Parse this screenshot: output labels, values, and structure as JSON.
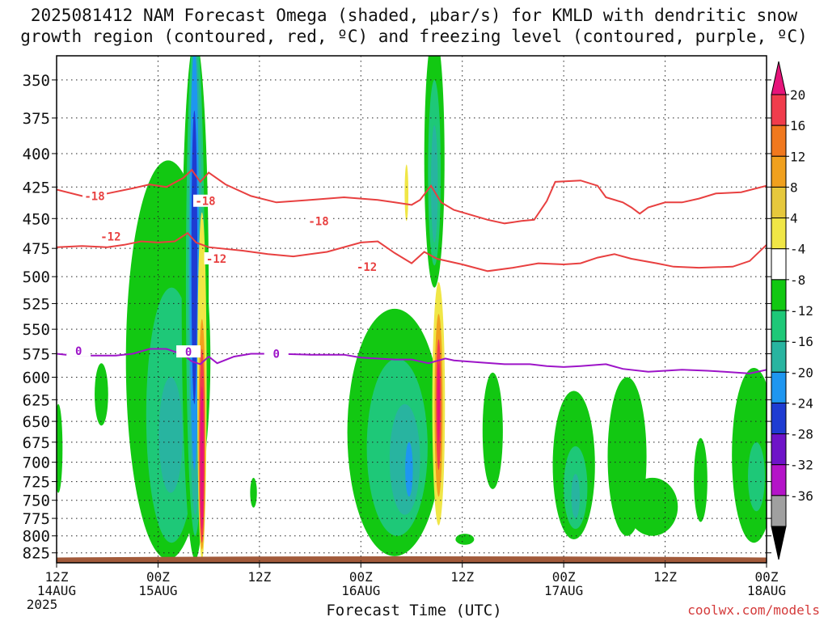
{
  "title_line1": "2025081412 NAM Forecast Omega (shaded, μbar/s) for KMLD with dendritic snow",
  "title_line2": "growth region (contoured, red, ºC) and freezing level (contoured, purple, ºC)",
  "credit": "coolwx.com/models",
  "chart_data": {
    "type": "heatmap",
    "xlabel": "Forecast Time (UTC)",
    "ylabel": "",
    "x_hours_range": [
      0,
      84
    ],
    "x_ticks": [
      {
        "hour": 0,
        "line1": "12Z",
        "line2": "14AUG",
        "line3": "2025"
      },
      {
        "hour": 12,
        "line1": "00Z",
        "line2": "15AUG",
        "line3": ""
      },
      {
        "hour": 24,
        "line1": "12Z",
        "line2": "",
        "line3": ""
      },
      {
        "hour": 36,
        "line1": "00Z",
        "line2": "16AUG",
        "line3": ""
      },
      {
        "hour": 48,
        "line1": "12Z",
        "line2": "",
        "line3": ""
      },
      {
        "hour": 60,
        "line1": "00Z",
        "line2": "17AUG",
        "line3": ""
      },
      {
        "hour": 72,
        "line1": "12Z",
        "line2": "",
        "line3": ""
      },
      {
        "hour": 84,
        "line1": "00Z",
        "line2": "18AUG",
        "line3": ""
      }
    ],
    "y_pressure_range_hpa": [
      335,
      840
    ],
    "y_scale": "log",
    "y_ticks": [
      350,
      375,
      400,
      425,
      450,
      475,
      500,
      525,
      550,
      575,
      600,
      625,
      650,
      675,
      700,
      725,
      750,
      775,
      800,
      825
    ],
    "grid": true,
    "colorbar": {
      "labels": [
        "20",
        "16",
        "12",
        "8",
        "4",
        "-4",
        "-8",
        "-12",
        "-16",
        "-20",
        "-24",
        "-28",
        "-32",
        "-36"
      ],
      "bands": [
        {
          "color": "#f03c4c"
        },
        {
          "color": "#f0781e"
        },
        {
          "color": "#f0a01e"
        },
        {
          "color": "#e6c83c"
        },
        {
          "color": "#f0e646"
        },
        {
          "color": "#ffffff"
        },
        {
          "color": "#12c812"
        },
        {
          "color": "#1ec878"
        },
        {
          "color": "#28b4a0"
        },
        {
          "color": "#1e96f0"
        },
        {
          "color": "#1e3cd2"
        },
        {
          "color": "#6e14c8"
        },
        {
          "color": "#b414c8"
        },
        {
          "color": "#a0a0a0"
        }
      ],
      "top_triangle_color": "#e6147a",
      "bottom_triangle_color": "#000000"
    },
    "omega_regions": [
      {
        "color": "#12c812",
        "cx": 13.2,
        "p": 620,
        "rx": 5.0,
        "rp": 215
      },
      {
        "color": "#1ec878",
        "cx": 13.6,
        "p": 660,
        "rx": 3.0,
        "rp": 150
      },
      {
        "color": "#28b4a0",
        "cx": 13.5,
        "p": 670,
        "rx": 1.4,
        "rp": 70
      },
      {
        "color": "#12c812",
        "cx": 16.4,
        "p": 580,
        "rx": 1.6,
        "rp": 255
      },
      {
        "color": "#1ec878",
        "cx": 16.4,
        "p": 560,
        "rx": 1.1,
        "rp": 240
      },
      {
        "color": "#28b4a0",
        "cx": 16.4,
        "p": 550,
        "rx": 0.8,
        "rp": 220
      },
      {
        "color": "#1e96f0",
        "cx": 16.3,
        "p": 520,
        "rx": 0.55,
        "rp": 190
      },
      {
        "color": "#1e3cd2",
        "cx": 16.3,
        "p": 500,
        "rx": 0.35,
        "rp": 130
      },
      {
        "color": "#f0e646",
        "cx": 17.2,
        "p": 640,
        "rx": 0.55,
        "rp": 195
      },
      {
        "color": "#f0a01e",
        "cx": 17.2,
        "p": 680,
        "rx": 0.42,
        "rp": 140
      },
      {
        "color": "#f03c4c",
        "cx": 17.2,
        "p": 690,
        "rx": 0.32,
        "rp": 120
      },
      {
        "color": "#e6147a",
        "cx": 17.2,
        "p": 700,
        "rx": 0.2,
        "rp": 90
      },
      {
        "color": "#12c812",
        "cx": 5.3,
        "p": 620,
        "rx": 0.8,
        "rp": 35
      },
      {
        "color": "#12c812",
        "cx": 0.2,
        "p": 685,
        "rx": 0.5,
        "rp": 55
      },
      {
        "color": "#12c812",
        "cx": 23.3,
        "p": 740,
        "rx": 0.4,
        "rp": 20
      },
      {
        "color": "#12c812",
        "cx": 40.0,
        "p": 680,
        "rx": 5.6,
        "rp": 150
      },
      {
        "color": "#1ec878",
        "cx": 40.3,
        "p": 690,
        "rx": 3.6,
        "rp": 110
      },
      {
        "color": "#28b4a0",
        "cx": 41.2,
        "p": 700,
        "rx": 1.8,
        "rp": 70
      },
      {
        "color": "#1e96f0",
        "cx": 41.7,
        "p": 710,
        "rx": 0.45,
        "rp": 35
      },
      {
        "color": "#12c812",
        "cx": 44.7,
        "p": 415,
        "rx": 1.2,
        "rp": 95
      },
      {
        "color": "#1ec878",
        "cx": 44.7,
        "p": 420,
        "rx": 0.75,
        "rp": 70
      },
      {
        "color": "#28b4a0",
        "cx": 44.7,
        "p": 425,
        "rx": 0.4,
        "rp": 45
      },
      {
        "color": "#f0e646",
        "cx": 41.4,
        "p": 430,
        "rx": 0.22,
        "rp": 22
      },
      {
        "color": "#f0e646",
        "cx": 45.2,
        "p": 645,
        "rx": 0.75,
        "rp": 140
      },
      {
        "color": "#f0a01e",
        "cx": 45.2,
        "p": 640,
        "rx": 0.48,
        "rp": 105
      },
      {
        "color": "#f03c4c",
        "cx": 45.2,
        "p": 635,
        "rx": 0.3,
        "rp": 75
      },
      {
        "color": "#e6147a",
        "cx": 45.2,
        "p": 630,
        "rx": 0.15,
        "rp": 45
      },
      {
        "color": "#12c812",
        "cx": 51.6,
        "p": 665,
        "rx": 1.2,
        "rp": 70
      },
      {
        "color": "#12c812",
        "cx": 48.3,
        "p": 805,
        "rx": 1.1,
        "rp": 8
      },
      {
        "color": "#12c812",
        "cx": 61.2,
        "p": 710,
        "rx": 2.5,
        "rp": 95
      },
      {
        "color": "#1ec878",
        "cx": 61.4,
        "p": 735,
        "rx": 1.4,
        "rp": 55
      },
      {
        "color": "#28b4a0",
        "cx": 61.4,
        "p": 745,
        "rx": 0.5,
        "rp": 30
      },
      {
        "color": "#12c812",
        "cx": 67.5,
        "p": 700,
        "rx": 2.3,
        "rp": 100
      },
      {
        "color": "#12c812",
        "cx": 70.5,
        "p": 760,
        "rx": 3.0,
        "rp": 40
      },
      {
        "color": "#12c812",
        "cx": 76.2,
        "p": 725,
        "rx": 0.8,
        "rp": 55
      },
      {
        "color": "#12c812",
        "cx": 82.5,
        "p": 700,
        "rx": 2.6,
        "rp": 110
      },
      {
        "color": "#1ec878",
        "cx": 82.8,
        "p": 720,
        "rx": 1.0,
        "rp": 45
      }
    ],
    "contours": [
      {
        "value": "-18",
        "color": "#e84040",
        "points": [
          [
            0,
            427
          ],
          [
            3,
            432
          ],
          [
            6,
            430
          ],
          [
            9,
            426
          ],
          [
            11,
            423
          ],
          [
            13,
            425
          ],
          [
            15,
            418
          ],
          [
            16,
            412
          ],
          [
            17,
            421
          ],
          [
            18,
            414
          ],
          [
            20,
            423
          ],
          [
            23,
            432
          ],
          [
            26,
            437
          ],
          [
            30,
            435
          ],
          [
            34,
            433
          ],
          [
            38,
            435
          ],
          [
            40,
            437
          ],
          [
            42,
            439
          ],
          [
            43,
            435
          ],
          [
            44.3,
            424
          ],
          [
            45.5,
            437
          ],
          [
            47,
            443
          ],
          [
            49,
            447
          ],
          [
            51,
            451
          ],
          [
            53,
            454
          ],
          [
            55,
            452
          ],
          [
            56.5,
            451
          ],
          [
            58,
            436
          ],
          [
            59,
            421
          ],
          [
            62,
            420
          ],
          [
            64,
            424
          ],
          [
            65,
            433
          ],
          [
            67,
            437
          ],
          [
            68,
            441
          ],
          [
            69,
            446
          ],
          [
            70,
            441
          ],
          [
            72,
            437
          ],
          [
            73,
            437
          ],
          [
            74,
            437
          ],
          [
            76,
            434
          ],
          [
            78,
            430
          ],
          [
            81,
            429
          ],
          [
            84,
            424
          ]
        ],
        "labels": [
          [
            4.5,
            432
          ],
          [
            17.6,
            436
          ],
          [
            31,
            452
          ]
        ]
      },
      {
        "value": "-12",
        "color": "#e84040",
        "points": [
          [
            0,
            474
          ],
          [
            3,
            473
          ],
          [
            6,
            474
          ],
          [
            8,
            472
          ],
          [
            10,
            469
          ],
          [
            12,
            470
          ],
          [
            14,
            469
          ],
          [
            15.5,
            462
          ],
          [
            16.5,
            470
          ],
          [
            18,
            474
          ],
          [
            22,
            477
          ],
          [
            25,
            480
          ],
          [
            28,
            482
          ],
          [
            32,
            478
          ],
          [
            36,
            470
          ],
          [
            38,
            469
          ],
          [
            40,
            479
          ],
          [
            42,
            488
          ],
          [
            43.5,
            478
          ],
          [
            45,
            484
          ],
          [
            48,
            489
          ],
          [
            51,
            495
          ],
          [
            54,
            492
          ],
          [
            57,
            488
          ],
          [
            60,
            489
          ],
          [
            62,
            488
          ],
          [
            64,
            483
          ],
          [
            66,
            480
          ],
          [
            68,
            484
          ],
          [
            71,
            488
          ],
          [
            73,
            491
          ],
          [
            76,
            492
          ],
          [
            80,
            491
          ],
          [
            82,
            486
          ],
          [
            84,
            472
          ]
        ],
        "labels": [
          [
            6.4,
            465
          ],
          [
            18.9,
            484
          ],
          [
            36.7,
            491
          ]
        ]
      },
      {
        "value": "0",
        "color": "#9d14c8",
        "points": [
          [
            0,
            575
          ],
          [
            2,
            577
          ],
          [
            4,
            577
          ],
          [
            7,
            577
          ],
          [
            9,
            575
          ],
          [
            11,
            570
          ],
          [
            13,
            570
          ],
          [
            15,
            576
          ],
          [
            16,
            583
          ],
          [
            17,
            586
          ],
          [
            18,
            578
          ],
          [
            19,
            585
          ],
          [
            21,
            578
          ],
          [
            23,
            575
          ],
          [
            26,
            575
          ],
          [
            30,
            576
          ],
          [
            34,
            576
          ],
          [
            36,
            579
          ],
          [
            40,
            581
          ],
          [
            42,
            581
          ],
          [
            44,
            585
          ],
          [
            46,
            580
          ],
          [
            47,
            582
          ],
          [
            50,
            584
          ],
          [
            53,
            586
          ],
          [
            56,
            586
          ],
          [
            58,
            588
          ],
          [
            60,
            589
          ],
          [
            62,
            588
          ],
          [
            65,
            586
          ],
          [
            67,
            591
          ],
          [
            70,
            594
          ],
          [
            72,
            593
          ],
          [
            74,
            592
          ],
          [
            77,
            593
          ],
          [
            79,
            594
          ],
          [
            82,
            596
          ],
          [
            84,
            592
          ]
        ],
        "labels": [
          [
            2.6,
            572
          ],
          [
            15.6,
            573
          ],
          [
            26,
            575
          ]
        ]
      }
    ],
    "ground": {
      "color": "#a25a3a",
      "top_hpa": 832
    }
  }
}
